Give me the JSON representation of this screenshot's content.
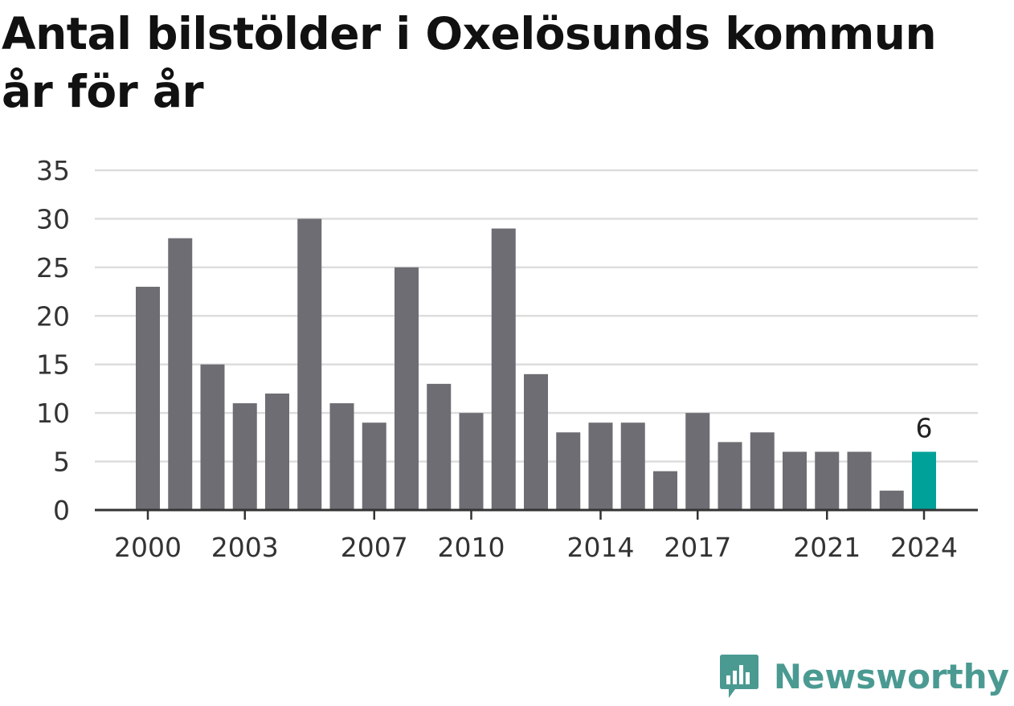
{
  "title": "Antal bilstölder i Oxelösunds kommun år för år",
  "brand": {
    "name": "Newsworthy",
    "icon": "newsworthy-logo-icon",
    "color": "#4a9a92"
  },
  "colors": {
    "bar": "#6e6d73",
    "highlight": "#00a199",
    "grid": "#dddddd",
    "axis": "#333333"
  },
  "chart_data": {
    "type": "bar",
    "title": "Antal bilstölder i Oxelösunds kommun år för år",
    "xlabel": "",
    "ylabel": "",
    "categories": [
      2000,
      2001,
      2002,
      2003,
      2004,
      2005,
      2006,
      2007,
      2008,
      2009,
      2010,
      2011,
      2012,
      2013,
      2014,
      2015,
      2016,
      2017,
      2018,
      2019,
      2020,
      2021,
      2022,
      2023,
      2024
    ],
    "values": [
      23,
      28,
      15,
      11,
      12,
      30,
      11,
      9,
      25,
      13,
      10,
      29,
      14,
      8,
      9,
      9,
      4,
      10,
      7,
      8,
      6,
      6,
      6,
      2,
      6
    ],
    "x_tick_labels": [
      "2000",
      "2003",
      "2007",
      "2010",
      "2014",
      "2017",
      "2021",
      "2024"
    ],
    "y_ticks": [
      0,
      5,
      10,
      15,
      20,
      25,
      30,
      35
    ],
    "ylim": [
      0,
      35
    ],
    "grid": true,
    "highlight": {
      "category": 2024,
      "value": 6,
      "label": "6"
    }
  }
}
